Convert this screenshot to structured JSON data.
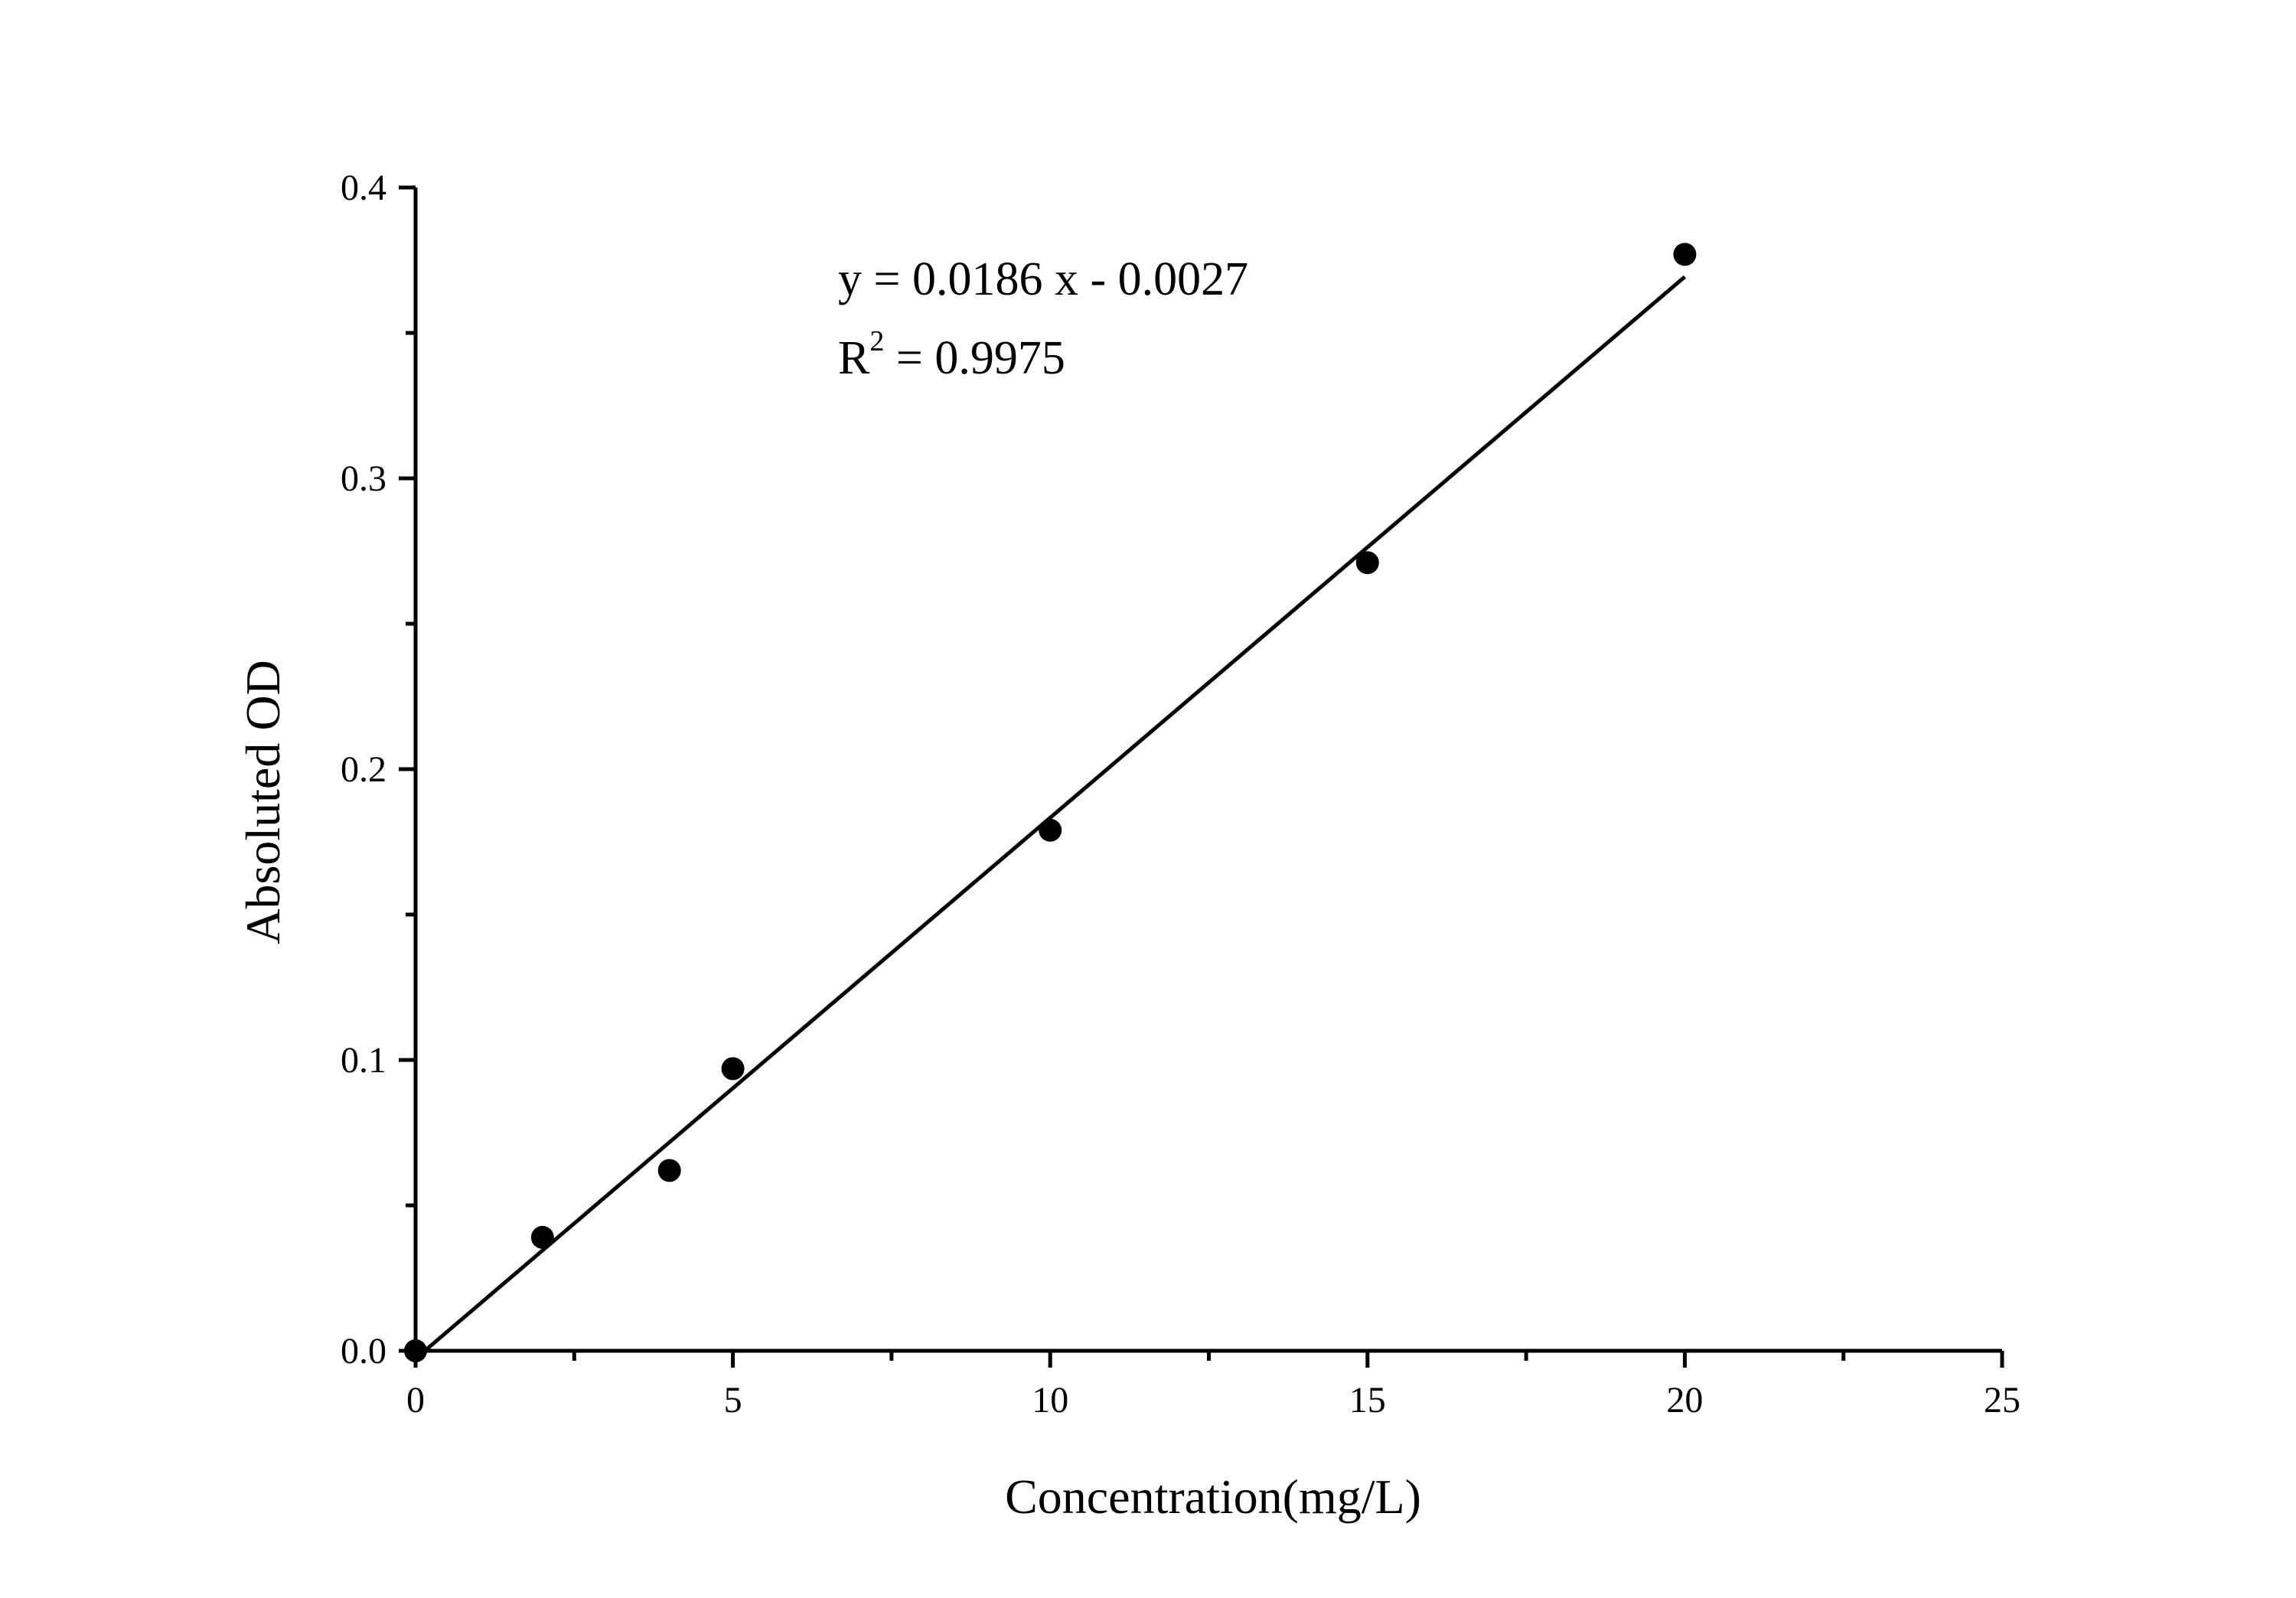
{
  "chart_data": {
    "type": "scatter",
    "title": "",
    "xlabel": "Concentration(mg/L)",
    "ylabel": "Absoluted OD",
    "xlim": [
      0,
      25
    ],
    "ylim": [
      0,
      0.4
    ],
    "x_major_ticks": [
      0,
      5,
      10,
      15,
      20,
      25
    ],
    "x_tick_labels": [
      "0",
      "5",
      "10",
      "15",
      "20",
      "25"
    ],
    "x_minor_ticks": [
      2.5,
      7.5,
      12.5,
      17.5,
      22.5
    ],
    "y_major_ticks": [
      0.0,
      0.1,
      0.2,
      0.3,
      0.4
    ],
    "y_tick_labels": [
      "0.0",
      "0.1",
      "0.2",
      "0.3",
      "0.4"
    ],
    "y_minor_ticks": [
      0.05,
      0.15,
      0.25,
      0.35
    ],
    "grid": false,
    "legend": "none",
    "series": [
      {
        "type": "scatter",
        "color": "#000000",
        "x": [
          0,
          2,
          4,
          5,
          10,
          15,
          20
        ],
        "y": [
          0.0,
          0.039,
          0.062,
          0.097,
          0.179,
          0.271,
          0.377
        ]
      }
    ],
    "fit": {
      "type": "line",
      "color": "#000000",
      "slope": 0.0186,
      "intercept": -0.0027,
      "x_range": [
        0,
        20
      ]
    },
    "annotations": {
      "equation": "y = 0.0186 x - 0.0027",
      "r2_base": "R",
      "r2_sup": "2",
      "r2_rest": " = 0.9975"
    }
  }
}
